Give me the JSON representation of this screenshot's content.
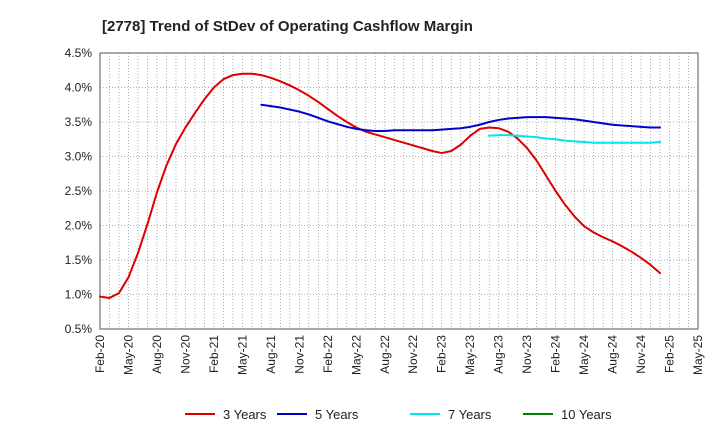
{
  "chart_data": {
    "type": "line",
    "title": "[2778]  Trend of StDev of Operating Cashflow Margin",
    "xlabel": "",
    "ylabel": "",
    "x_ticks": [
      "Feb-20",
      "May-20",
      "Aug-20",
      "Nov-20",
      "Feb-21",
      "May-21",
      "Aug-21",
      "Nov-21",
      "Feb-22",
      "May-22",
      "Aug-22",
      "Nov-22",
      "Feb-23",
      "May-23",
      "Aug-23",
      "Nov-23",
      "Feb-24",
      "May-24",
      "Aug-24",
      "Nov-24",
      "Feb-25",
      "May-25"
    ],
    "y_ticks": [
      "0.5%",
      "1.0%",
      "1.5%",
      "2.0%",
      "2.5%",
      "3.0%",
      "3.5%",
      "4.0%",
      "4.5%"
    ],
    "ylim": [
      0.5,
      4.5
    ],
    "grid": true,
    "legend_position": "bottom",
    "series": [
      {
        "name": "3 Years",
        "color": "#dd0000",
        "points": [
          [
            "Feb-20",
            0.97
          ],
          [
            "Mar-20",
            0.95
          ],
          [
            "Apr-20",
            1.02
          ],
          [
            "May-20",
            1.25
          ],
          [
            "Jun-20",
            1.6
          ],
          [
            "Jul-20",
            2.02
          ],
          [
            "Aug-20",
            2.48
          ],
          [
            "Sep-20",
            2.87
          ],
          [
            "Oct-20",
            3.18
          ],
          [
            "Nov-20",
            3.42
          ],
          [
            "Dec-20",
            3.63
          ],
          [
            "Jan-21",
            3.83
          ],
          [
            "Feb-21",
            4.0
          ],
          [
            "Mar-21",
            4.12
          ],
          [
            "Apr-21",
            4.18
          ],
          [
            "May-21",
            4.2
          ],
          [
            "Jun-21",
            4.2
          ],
          [
            "Jul-21",
            4.18
          ],
          [
            "Aug-21",
            4.14
          ],
          [
            "Sep-21",
            4.09
          ],
          [
            "Oct-21",
            4.03
          ],
          [
            "Nov-21",
            3.96
          ],
          [
            "Dec-21",
            3.88
          ],
          [
            "Jan-22",
            3.79
          ],
          [
            "Feb-22",
            3.69
          ],
          [
            "Mar-22",
            3.59
          ],
          [
            "Apr-22",
            3.5
          ],
          [
            "May-22",
            3.42
          ],
          [
            "Jun-22",
            3.36
          ],
          [
            "Jul-22",
            3.32
          ],
          [
            "Aug-22",
            3.28
          ],
          [
            "Sep-22",
            3.24
          ],
          [
            "Oct-22",
            3.2
          ],
          [
            "Nov-22",
            3.16
          ],
          [
            "Dec-22",
            3.12
          ],
          [
            "Jan-23",
            3.08
          ],
          [
            "Feb-23",
            3.05
          ],
          [
            "Mar-23",
            3.08
          ],
          [
            "Apr-23",
            3.17
          ],
          [
            "May-23",
            3.3
          ],
          [
            "Jun-23",
            3.4
          ],
          [
            "Jul-23",
            3.42
          ],
          [
            "Aug-23",
            3.41
          ],
          [
            "Sep-23",
            3.36
          ],
          [
            "Oct-23",
            3.26
          ],
          [
            "Nov-23",
            3.12
          ],
          [
            "Dec-23",
            2.94
          ],
          [
            "Jan-24",
            2.72
          ],
          [
            "Feb-24",
            2.5
          ],
          [
            "Mar-24",
            2.3
          ],
          [
            "Apr-24",
            2.13
          ],
          [
            "May-24",
            1.99
          ],
          [
            "Jun-24",
            1.9
          ],
          [
            "Jul-24",
            1.83
          ],
          [
            "Aug-24",
            1.77
          ],
          [
            "Sep-24",
            1.7
          ],
          [
            "Oct-24",
            1.62
          ],
          [
            "Nov-24",
            1.53
          ],
          [
            "Dec-24",
            1.43
          ],
          [
            "Jan-25",
            1.31
          ]
        ]
      },
      {
        "name": "5 Years",
        "color": "#0000cc",
        "points": [
          [
            "Jul-21",
            3.75
          ],
          [
            "Aug-21",
            3.73
          ],
          [
            "Sep-21",
            3.71
          ],
          [
            "Oct-21",
            3.68
          ],
          [
            "Nov-21",
            3.65
          ],
          [
            "Dec-21",
            3.61
          ],
          [
            "Jan-22",
            3.56
          ],
          [
            "Feb-22",
            3.51
          ],
          [
            "Mar-22",
            3.47
          ],
          [
            "Apr-22",
            3.43
          ],
          [
            "May-22",
            3.4
          ],
          [
            "Jun-22",
            3.38
          ],
          [
            "Jul-22",
            3.37
          ],
          [
            "Aug-22",
            3.37
          ],
          [
            "Sep-22",
            3.38
          ],
          [
            "Oct-22",
            3.38
          ],
          [
            "Nov-22",
            3.38
          ],
          [
            "Dec-22",
            3.38
          ],
          [
            "Jan-23",
            3.38
          ],
          [
            "Feb-23",
            3.39
          ],
          [
            "Mar-23",
            3.4
          ],
          [
            "Apr-23",
            3.41
          ],
          [
            "May-23",
            3.43
          ],
          [
            "Jun-23",
            3.46
          ],
          [
            "Jul-23",
            3.5
          ],
          [
            "Aug-23",
            3.53
          ],
          [
            "Sep-23",
            3.55
          ],
          [
            "Oct-23",
            3.56
          ],
          [
            "Nov-23",
            3.57
          ],
          [
            "Dec-23",
            3.57
          ],
          [
            "Jan-24",
            3.57
          ],
          [
            "Feb-24",
            3.56
          ],
          [
            "Mar-24",
            3.55
          ],
          [
            "Apr-24",
            3.54
          ],
          [
            "May-24",
            3.52
          ],
          [
            "Jun-24",
            3.5
          ],
          [
            "Jul-24",
            3.48
          ],
          [
            "Aug-24",
            3.46
          ],
          [
            "Sep-24",
            3.45
          ],
          [
            "Oct-24",
            3.44
          ],
          [
            "Nov-24",
            3.43
          ],
          [
            "Dec-24",
            3.42
          ],
          [
            "Jan-25",
            3.42
          ]
        ]
      },
      {
        "name": "7 Years",
        "color": "#00e5e5",
        "points": [
          [
            "Jul-23",
            3.3
          ],
          [
            "Aug-23",
            3.31
          ],
          [
            "Sep-23",
            3.31
          ],
          [
            "Oct-23",
            3.3
          ],
          [
            "Nov-23",
            3.29
          ],
          [
            "Dec-23",
            3.28
          ],
          [
            "Jan-24",
            3.26
          ],
          [
            "Feb-24",
            3.25
          ],
          [
            "Mar-24",
            3.23
          ],
          [
            "Apr-24",
            3.22
          ],
          [
            "May-24",
            3.21
          ],
          [
            "Jun-24",
            3.2
          ],
          [
            "Jul-24",
            3.2
          ],
          [
            "Aug-24",
            3.2
          ],
          [
            "Sep-24",
            3.2
          ],
          [
            "Oct-24",
            3.2
          ],
          [
            "Nov-24",
            3.2
          ],
          [
            "Dec-24",
            3.2
          ],
          [
            "Jan-25",
            3.21
          ]
        ]
      },
      {
        "name": "10 Years",
        "color": "#008000",
        "points": []
      }
    ]
  }
}
